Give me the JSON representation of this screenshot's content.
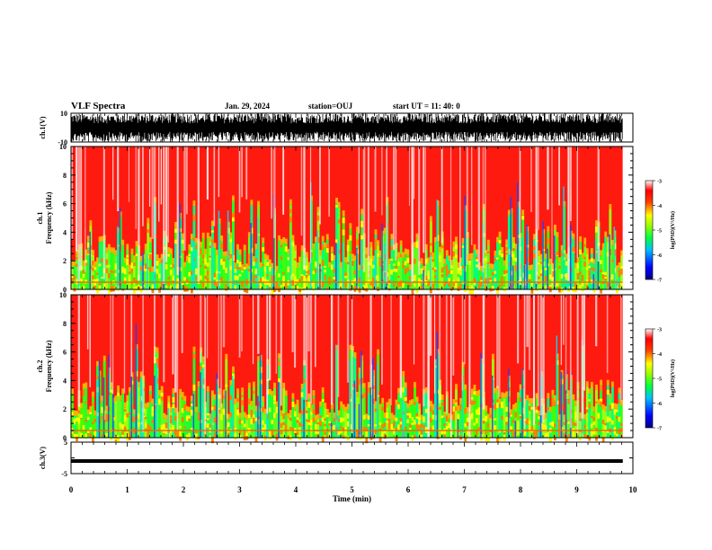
{
  "header": {
    "title": "VLF Spectra",
    "date": "Jan. 29, 2024",
    "station": "station=OUJ",
    "start_ut": "start UT =  11: 40: 0"
  },
  "chart_data": [
    {
      "type": "line",
      "name": "ch1-waveform",
      "ylabel": "ch.1(V)",
      "ylim": [
        -10,
        10
      ],
      "yticks": [
        -10,
        10
      ],
      "xlim": [
        0,
        10
      ],
      "color": "#000000",
      "description_values": {
        "mean": 0,
        "fills_range": true
      }
    },
    {
      "type": "heatmap",
      "name": "ch1-spectrogram",
      "ylabel": "ch.1\nFrequency (kHz)",
      "ylim": [
        0,
        10
      ],
      "yticks": [
        0,
        2,
        4,
        6,
        8,
        10
      ],
      "xlim": [
        0,
        9.82
      ],
      "colorbar": {
        "label": "log(PSD)(V²/Hz)",
        "range": [
          -7,
          -3
        ],
        "ticks": [
          "-3",
          "-4",
          "-5",
          "-6",
          "-7"
        ]
      }
    },
    {
      "type": "heatmap",
      "name": "ch2-spectrogram",
      "ylabel": "ch.2\nFrequency (kHz)",
      "ylim": [
        0,
        10
      ],
      "yticks": [
        0,
        2,
        4,
        6,
        8,
        10
      ],
      "xlim": [
        0,
        9.82
      ],
      "colorbar": {
        "label": "log(PSD)(V²/Hz)",
        "range": [
          -7,
          -3
        ],
        "ticks": [
          "-3",
          "-4",
          "-5",
          "-6",
          "-7"
        ]
      }
    },
    {
      "type": "line",
      "name": "ch3-waveform",
      "ylabel": "ch.3(V)",
      "ylim": [
        -5,
        5
      ],
      "yticks": [
        -5,
        0,
        5
      ],
      "ytick_labels": [
        "-5",
        "",
        "5"
      ],
      "xlim": [
        0,
        10
      ],
      "x": [
        0,
        9.82
      ],
      "y": [
        -1,
        -1
      ],
      "color": "#000000"
    }
  ],
  "xaxis": {
    "label": "Time (min)",
    "ticks": [
      "0",
      "1",
      "2",
      "3",
      "4",
      "5",
      "6",
      "7",
      "8",
      "9",
      "10"
    ]
  },
  "colors": {
    "cbar_stops": [
      "#00008b",
      "#0000ff",
      "#00ffff",
      "#00ff00",
      "#ffff00",
      "#ff0000",
      "#ffffff"
    ]
  }
}
